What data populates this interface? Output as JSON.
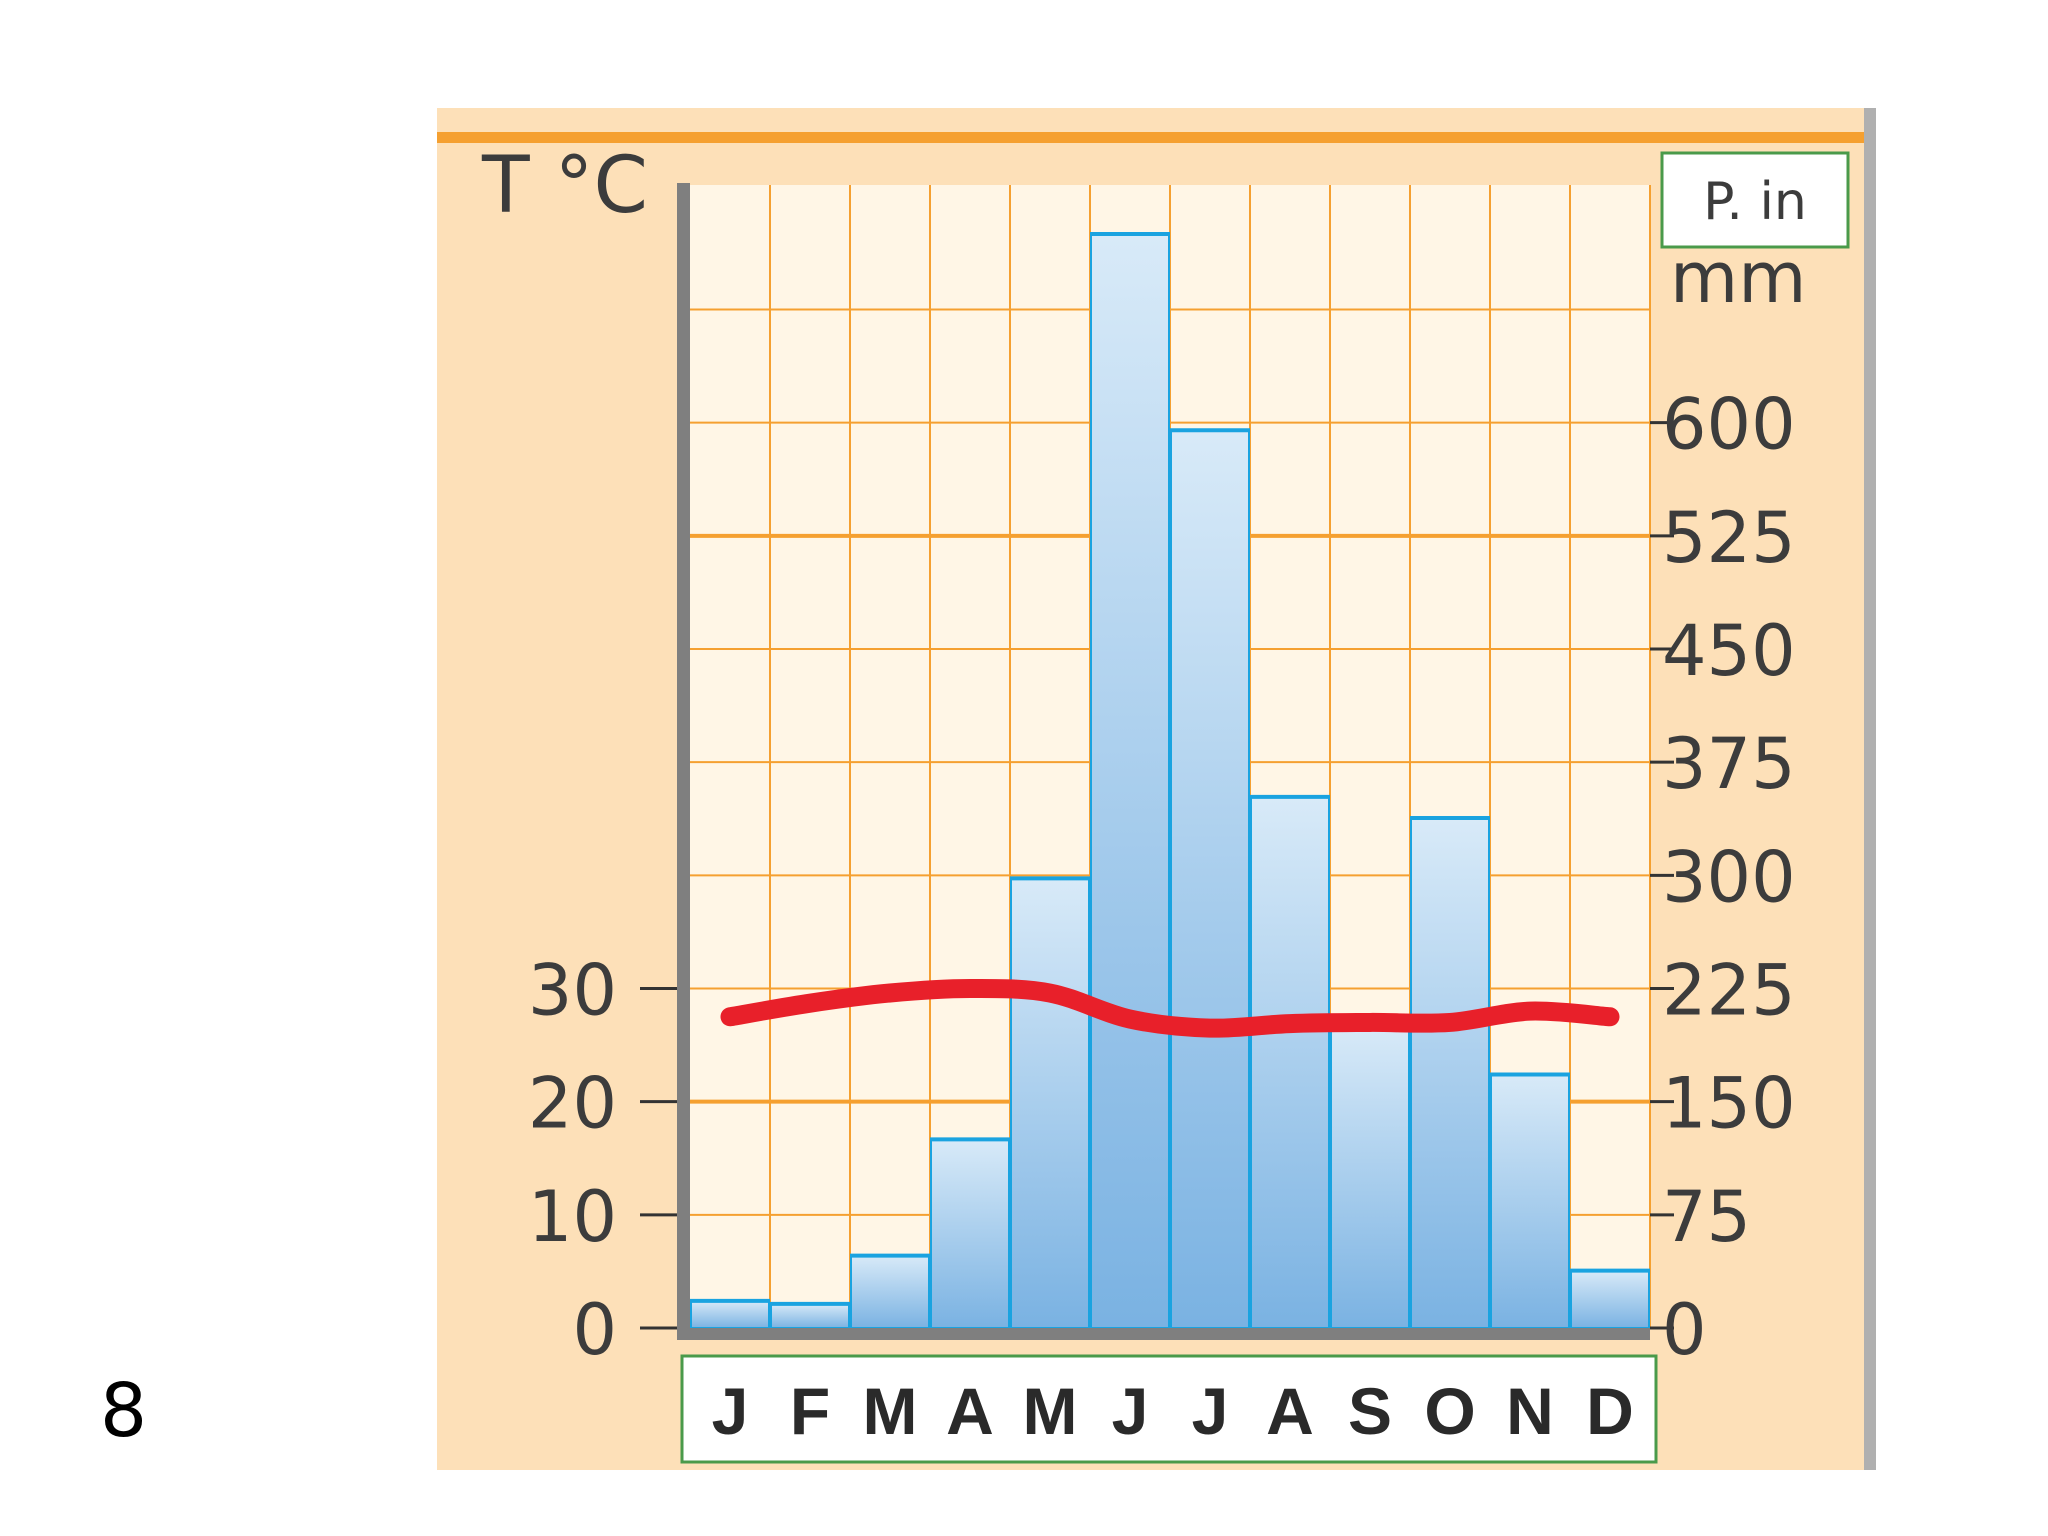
{
  "page_number": "8",
  "colors": {
    "panel_bg": "#fde0b8",
    "plot_bg": "#fff6e6",
    "grid": "#f5a030",
    "bar_top": "#d8eaf8",
    "bar_bottom": "#7ab2e2",
    "bar_edge": "#1aa3e0",
    "temp_line": "#e8202a",
    "axis": "#7f7f7f",
    "label_box_border": "#4a9a4a"
  },
  "chart_data": {
    "type": "bar",
    "title": "",
    "categories": [
      "J",
      "F",
      "M",
      "A",
      "M",
      "J",
      "J",
      "A",
      "S",
      "O",
      "N",
      "D"
    ],
    "series": [
      {
        "name": "P. in mm",
        "type": "bar",
        "axis": "right",
        "values": [
          18,
          16,
          48,
          125,
          298,
          725,
          595,
          352,
          200,
          338,
          168,
          38
        ]
      },
      {
        "name": "T °C",
        "type": "line",
        "axis": "left",
        "values": [
          27.5,
          28.7,
          29.6,
          30,
          29.6,
          27.3,
          26.5,
          26.9,
          27,
          27,
          28,
          27.5
        ]
      }
    ],
    "y_left": {
      "label": "T °C",
      "ticks": [
        0,
        10,
        20,
        30
      ],
      "range": [
        0,
        101
      ]
    },
    "y_right": {
      "label": "mm",
      "unit_box": "P. in",
      "ticks": [
        0,
        75,
        150,
        225,
        300,
        375,
        450,
        525,
        600
      ],
      "range": [
        0,
        757.5
      ]
    },
    "grid": true
  }
}
